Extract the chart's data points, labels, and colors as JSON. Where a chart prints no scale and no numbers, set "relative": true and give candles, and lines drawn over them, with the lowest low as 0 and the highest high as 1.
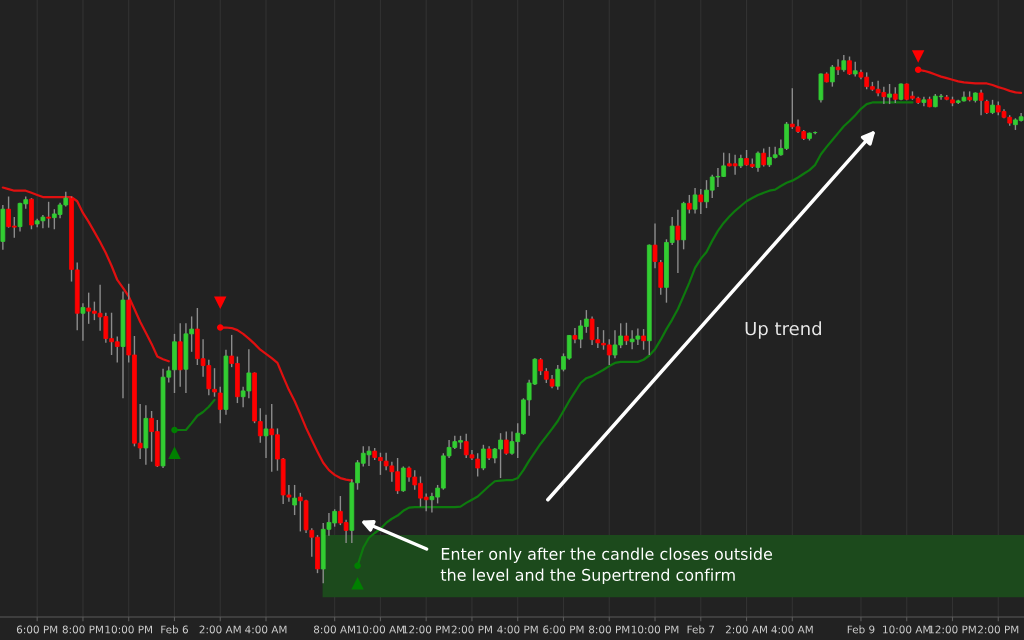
{
  "chart_data": {
    "type": "candlestick",
    "relative": true,
    "grid": "x",
    "categories": [
      null,
      null,
      null,
      null,
      null,
      null,
      "6:00 PM",
      null,
      null,
      null,
      null,
      null,
      null,
      null,
      "8:00 PM",
      null,
      null,
      null,
      null,
      null,
      null,
      null,
      "10:00 PM",
      null,
      null,
      null,
      null,
      null,
      null,
      null,
      "Feb 6",
      null,
      null,
      null,
      null,
      null,
      null,
      null,
      "2:00 AM",
      null,
      null,
      null,
      null,
      null,
      null,
      null,
      "4:00 AM",
      null,
      null,
      null,
      null,
      null,
      null,
      null,
      null,
      null,
      null,
      null,
      "8:00 AM",
      null,
      null,
      null,
      null,
      null,
      null,
      null,
      "10:00 AM",
      null,
      null,
      null,
      null,
      null,
      null,
      null,
      "12:00 PM",
      null,
      null,
      null,
      null,
      null,
      null,
      null,
      "2:00 PM",
      null,
      null,
      null,
      null,
      null,
      null,
      null,
      "4:00 PM",
      null,
      null,
      null,
      null,
      null,
      null,
      null,
      "6:00 PM",
      null,
      null,
      null,
      null,
      null,
      null,
      null,
      "8:00 PM",
      null,
      null,
      null,
      null,
      null,
      null,
      null,
      "10:00 PM",
      null,
      null,
      null,
      null,
      null,
      null,
      null,
      "Feb 7",
      null,
      null,
      null,
      null,
      null,
      null,
      null,
      "2:00 AM",
      null,
      null,
      null,
      null,
      null,
      null,
      null,
      "4:00 AM",
      null,
      null,
      null,
      null,
      null,
      null,
      null,
      null,
      null,
      null,
      null,
      "Feb 9",
      null,
      null,
      null,
      null,
      null,
      null,
      null,
      "10:00 AM",
      null,
      null,
      null,
      null,
      null,
      null,
      null,
      "12:00 PM",
      null,
      null,
      null,
      null,
      null,
      null,
      null,
      "2:00 PM",
      null,
      null,
      null,
      null
    ],
    "ohlc": [
      [
        0.647,
        0.716,
        0.631,
        0.708
      ],
      [
        0.708,
        0.732,
        0.673,
        0.675
      ],
      [
        0.676,
        0.693,
        0.654,
        0.674
      ],
      [
        0.675,
        0.72,
        0.666,
        0.719
      ],
      [
        0.718,
        0.732,
        0.709,
        0.726
      ],
      [
        0.727,
        0.729,
        0.67,
        0.678
      ],
      [
        0.68,
        0.69,
        0.674,
        0.686
      ],
      [
        0.686,
        0.697,
        0.672,
        0.693
      ],
      [
        0.693,
        0.722,
        0.673,
        0.691
      ],
      [
        0.692,
        0.708,
        0.67,
        0.699
      ],
      [
        0.698,
        0.72,
        0.691,
        0.716
      ],
      [
        0.716,
        0.741,
        0.713,
        0.729
      ],
      [
        0.729,
        0.732,
        0.571,
        0.594
      ],
      [
        0.593,
        0.607,
        0.479,
        0.511
      ],
      [
        0.511,
        0.53,
        0.459,
        0.522
      ],
      [
        0.521,
        0.55,
        0.491,
        0.515
      ],
      [
        0.515,
        0.533,
        0.498,
        0.511
      ],
      [
        0.511,
        0.565,
        0.478,
        0.504
      ],
      [
        0.505,
        0.512,
        0.455,
        0.463
      ],
      [
        0.463,
        0.512,
        0.432,
        0.457
      ],
      [
        0.457,
        0.467,
        0.418,
        0.448
      ],
      [
        0.448,
        0.552,
        0.35,
        0.536
      ],
      [
        0.536,
        0.567,
        0.418,
        0.432
      ],
      [
        0.432,
        0.468,
        0.259,
        0.265
      ],
      [
        0.265,
        0.339,
        0.235,
        0.256
      ],
      [
        0.256,
        0.337,
        0.224,
        0.312
      ],
      [
        0.312,
        0.326,
        0.23,
        0.287
      ],
      [
        0.287,
        0.309,
        0.22,
        0.222
      ],
      [
        0.222,
        0.406,
        0.218,
        0.39
      ],
      [
        0.39,
        0.41,
        0.38,
        0.402
      ],
      [
        0.404,
        0.472,
        0.36,
        0.457
      ],
      [
        0.457,
        0.492,
        0.372,
        0.404
      ],
      [
        0.405,
        0.492,
        0.36,
        0.472
      ],
      [
        0.472,
        0.505,
        0.438,
        0.481
      ],
      [
        0.481,
        0.521,
        0.413,
        0.425
      ],
      [
        0.425,
        0.462,
        0.391,
        0.412
      ],
      [
        0.412,
        0.423,
        0.356,
        0.368
      ],
      [
        0.367,
        0.407,
        0.353,
        0.362
      ],
      [
        0.36,
        0.372,
        0.303,
        0.329
      ],
      [
        0.329,
        0.442,
        0.319,
        0.43
      ],
      [
        0.43,
        0.47,
        0.409,
        0.416
      ],
      [
        0.416,
        0.429,
        0.341,
        0.353
      ],
      [
        0.353,
        0.372,
        0.333,
        0.364
      ],
      [
        0.364,
        0.443,
        0.35,
        0.398
      ],
      [
        0.398,
        0.399,
        0.303,
        0.307
      ],
      [
        0.306,
        0.331,
        0.266,
        0.279
      ],
      [
        0.279,
        0.319,
        0.237,
        0.292
      ],
      [
        0.292,
        0.339,
        0.211,
        0.281
      ],
      [
        0.281,
        0.293,
        0.213,
        0.235
      ],
      [
        0.235,
        0.237,
        0.15,
        0.167
      ],
      [
        0.167,
        0.186,
        0.154,
        0.163
      ],
      [
        0.148,
        0.186,
        0.129,
        0.161
      ],
      [
        0.163,
        0.171,
        0.098,
        0.156
      ],
      [
        0.156,
        0.158,
        0.095,
        0.101
      ],
      [
        0.1,
        0.104,
        0.05,
        0.087
      ],
      [
        0.087,
        0.091,
        0.019,
        0.027
      ],
      [
        0.027,
        0.114,
        0,
        0.102
      ],
      [
        0.102,
        0.133,
        0.09,
        0.115
      ],
      [
        0.114,
        0.14,
        0.107,
        0.136
      ],
      [
        0.136,
        0.165,
        0.11,
        0.114
      ],
      [
        0.115,
        0.12,
        0.076,
        0.1
      ],
      [
        0.1,
        0.197,
        0.076,
        0.19
      ],
      [
        0.19,
        0.233,
        0.177,
        0.228
      ],
      [
        0.227,
        0.259,
        0.221,
        0.246
      ],
      [
        0.243,
        0.259,
        0.222,
        0.25
      ],
      [
        0.25,
        0.256,
        0.233,
        0.238
      ],
      [
        0.238,
        0.247,
        0.205,
        0.232
      ],
      [
        0.231,
        0.247,
        0.214,
        0.222
      ],
      [
        0.222,
        0.23,
        0.192,
        0.211
      ],
      [
        0.211,
        0.237,
        0.169,
        0.175
      ],
      [
        0.175,
        0.221,
        0.173,
        0.218
      ],
      [
        0.218,
        0.221,
        0.192,
        0.201
      ],
      [
        0.201,
        0.214,
        0.177,
        0.186
      ],
      [
        0.189,
        0.202,
        0.145,
        0.161
      ],
      [
        0.163,
        0.17,
        0.136,
        0.158
      ],
      [
        0.158,
        0.171,
        0.134,
        0.164
      ],
      [
        0.163,
        0.186,
        0.151,
        0.18
      ],
      [
        0.18,
        0.246,
        0.177,
        0.241
      ],
      [
        0.241,
        0.271,
        0.237,
        0.257
      ],
      [
        0.257,
        0.279,
        0.254,
        0.268
      ],
      [
        0.267,
        0.279,
        0.254,
        0.27
      ],
      [
        0.268,
        0.283,
        0.237,
        0.243
      ],
      [
        0.243,
        0.252,
        0.233,
        0.237
      ],
      [
        0.235,
        0.246,
        0.202,
        0.218
      ],
      [
        0.218,
        0.262,
        0.214,
        0.254
      ],
      [
        0.254,
        0.259,
        0.233,
        0.237
      ],
      [
        0.237,
        0.256,
        0.227,
        0.254
      ],
      [
        0.254,
        0.284,
        0.199,
        0.271
      ],
      [
        0.271,
        0.287,
        0.243,
        0.246
      ],
      [
        0.246,
        0.287,
        0.243,
        0.268
      ],
      [
        0.268,
        0.303,
        0.237,
        0.284
      ],
      [
        0.283,
        0.35,
        0.281,
        0.347
      ],
      [
        0.347,
        0.385,
        0.317,
        0.379
      ],
      [
        0.377,
        0.426,
        0.375,
        0.424
      ],
      [
        0.423,
        0.426,
        0.394,
        0.402
      ],
      [
        0.401,
        0.407,
        0.379,
        0.386
      ],
      [
        0.386,
        0.394,
        0.369,
        0.373
      ],
      [
        0.373,
        0.413,
        0.366,
        0.405
      ],
      [
        0.405,
        0.435,
        0.401,
        0.429
      ],
      [
        0.426,
        0.47,
        0.423,
        0.469
      ],
      [
        0.469,
        0.483,
        0.454,
        0.462
      ],
      [
        0.462,
        0.498,
        0.445,
        0.487
      ],
      [
        0.486,
        0.517,
        0.474,
        0.5
      ],
      [
        0.5,
        0.505,
        0.451,
        0.461
      ],
      [
        0.461,
        0.485,
        0.445,
        0.455
      ],
      [
        0.454,
        0.479,
        0.442,
        0.451
      ],
      [
        0.451,
        0.462,
        0.413,
        0.432
      ],
      [
        0.432,
        0.479,
        0.426,
        0.451
      ],
      [
        0.451,
        0.492,
        0.445,
        0.468
      ],
      [
        0.468,
        0.493,
        0.451,
        0.459
      ],
      [
        0.457,
        0.479,
        0.443,
        0.462
      ],
      [
        0.462,
        0.482,
        0.451,
        0.468
      ],
      [
        0.468,
        0.481,
        0.442,
        0.459
      ],
      [
        0.459,
        0.641,
        0.432,
        0.64
      ],
      [
        0.64,
        0.681,
        0.596,
        0.609
      ],
      [
        0.607,
        0.612,
        0.546,
        0.56
      ],
      [
        0.56,
        0.651,
        0.531,
        0.645
      ],
      [
        0.645,
        0.693,
        0.64,
        0.676
      ],
      [
        0.676,
        0.707,
        0.587,
        0.65
      ],
      [
        0.65,
        0.722,
        0.632,
        0.719
      ],
      [
        0.719,
        0.735,
        0.7,
        0.708
      ],
      [
        0.708,
        0.748,
        0.7,
        0.735
      ],
      [
        0.735,
        0.746,
        0.699,
        0.722
      ],
      [
        0.722,
        0.763,
        0.71,
        0.744
      ],
      [
        0.744,
        0.773,
        0.729,
        0.769
      ],
      [
        0.769,
        0.786,
        0.75,
        0.77
      ],
      [
        0.77,
        0.815,
        0.769,
        0.79
      ],
      [
        0.794,
        0.814,
        0.789,
        0.79
      ],
      [
        0.794,
        0.811,
        0.773,
        0.79
      ],
      [
        0.79,
        0.811,
        0.786,
        0.804
      ],
      [
        0.804,
        0.82,
        0.79,
        0.792
      ],
      [
        0.793,
        0.804,
        0.786,
        0.789
      ],
      [
        0.787,
        0.817,
        0.779,
        0.814
      ],
      [
        0.814,
        0.823,
        0.789,
        0.792
      ],
      [
        0.792,
        0.826,
        0.788,
        0.806
      ],
      [
        0.806,
        0.826,
        0.804,
        0.811
      ],
      [
        0.811,
        0.84,
        0.809,
        0.823
      ],
      [
        0.823,
        0.873,
        0.82,
        0.869
      ],
      [
        0.869,
        0.937,
        0.86,
        0.864
      ],
      [
        0.864,
        0.878,
        0.852,
        0.855
      ],
      [
        0.855,
        0.858,
        0.839,
        0.842
      ],
      [
        0.842,
        0.853,
        0.838,
        0.852
      ],
      [
        0.853,
        0.855,
        0.85,
        0.853
      ],
      [
        0.915,
        0.965,
        0.91,
        0.964
      ],
      [
        0.964,
        0.967,
        0.948,
        0.949
      ],
      [
        0.949,
        0.981,
        0.94,
        0.977
      ],
      [
        0.977,
        0.992,
        0.962,
        0.972
      ],
      [
        0.972,
        1,
        0.968,
        0.989
      ],
      [
        0.989,
        0.997,
        0.962,
        0.964
      ],
      [
        0.964,
        0.987,
        0.959,
        0.97
      ],
      [
        0.967,
        0.972,
        0.954,
        0.958
      ],
      [
        0.958,
        0.967,
        0.935,
        0.94
      ],
      [
        0.94,
        0.949,
        0.932,
        0.935
      ],
      [
        0.935,
        0.951,
        0.922,
        0.928
      ],
      [
        0.929,
        0.94,
        0.907,
        0.921
      ],
      [
        0.92,
        0.945,
        0.907,
        0.926
      ],
      [
        0.926,
        0.939,
        0.909,
        0.916
      ],
      [
        0.916,
        0.946,
        0.914,
        0.945
      ],
      [
        0.945,
        0.946,
        0.914,
        0.916
      ],
      [
        0.922,
        0.931,
        0.915,
        0.918
      ],
      [
        0.918,
        0.921,
        0.907,
        0.91
      ],
      [
        0.91,
        0.921,
        0.903,
        0.915
      ],
      [
        0.916,
        0.921,
        0.901,
        0.902
      ],
      [
        0.902,
        0.926,
        0.901,
        0.922
      ],
      [
        0.921,
        0.926,
        0.915,
        0.922
      ],
      [
        0.92,
        0.924,
        0.914,
        0.916
      ],
      [
        0.915,
        0.921,
        0.903,
        0.909
      ],
      [
        0.91,
        0.915,
        0.907,
        0.913
      ],
      [
        0.913,
        0.931,
        0.912,
        0.92
      ],
      [
        0.92,
        0.931,
        0.912,
        0.915
      ],
      [
        0.914,
        0.929,
        0.91,
        0.928
      ],
      [
        0.928,
        0.934,
        0.886,
        0.914
      ],
      [
        0.912,
        0.915,
        0.888,
        0.891
      ],
      [
        0.891,
        0.915,
        0.888,
        0.905
      ],
      [
        0.904,
        0.912,
        0.886,
        0.892
      ],
      [
        0.893,
        0.897,
        0.88,
        0.882
      ],
      [
        0.882,
        0.886,
        0.866,
        0.871
      ],
      [
        0.868,
        0.88,
        0.858,
        0.877
      ],
      [
        0.876,
        0.89,
        0.874,
        0.883
      ]
    ],
    "colors": [
      "#32cd32",
      "#ff0000",
      "#ff0000",
      "#32cd32",
      "#32cd32",
      "#ff0000",
      "#32cd32",
      "#32cd32",
      "#ff0000",
      "#32cd32",
      "#32cd32",
      "#32cd32",
      "#ff0000",
      "#ff0000",
      "#32cd32",
      "#ff0000",
      "#ff0000",
      "#ff0000",
      "#ff0000",
      "#ff0000",
      "#ff0000",
      "#32cd32",
      "#ff0000",
      "#ff0000",
      "#ff0000",
      "#32cd32",
      "#ff0000",
      "#ff0000",
      "#32cd32",
      "#32cd32",
      "#32cd32",
      "#ff0000",
      "#32cd32",
      "#32cd32",
      "#ff0000",
      "#ff0000",
      "#ff0000",
      "#ff0000",
      "#ff0000",
      "#32cd32",
      "#ff0000",
      "#ff0000",
      "#32cd32",
      "#32cd32",
      "#ff0000",
      "#ff0000",
      "#32cd32",
      "#ff0000",
      "#ff0000",
      "#ff0000",
      "#ff0000",
      "#32cd32",
      "#ff0000",
      "#ff0000",
      "#ff0000",
      "#ff0000",
      "#32cd32",
      "#32cd32",
      "#32cd32",
      "#ff0000",
      "#ff0000",
      "#32cd32",
      "#32cd32",
      "#32cd32",
      "#32cd32",
      "#ff0000",
      "#ff0000",
      "#ff0000",
      "#ff0000",
      "#ff0000",
      "#32cd32",
      "#ff0000",
      "#ff0000",
      "#ff0000",
      "#ff0000",
      "#32cd32",
      "#32cd32",
      "#32cd32",
      "#32cd32",
      "#32cd32",
      "#32cd32",
      "#ff0000",
      "#ff0000",
      "#ff0000",
      "#32cd32",
      "#ff0000",
      "#32cd32",
      "#32cd32",
      "#ff0000",
      "#32cd32",
      "#32cd32",
      "#32cd32",
      "#32cd32",
      "#32cd32",
      "#ff0000",
      "#ff0000",
      "#ff0000",
      "#32cd32",
      "#32cd32",
      "#32cd32",
      "#ff0000",
      "#32cd32",
      "#32cd32",
      "#ff0000",
      "#ff0000",
      "#ff0000",
      "#ff0000",
      "#32cd32",
      "#32cd32",
      "#ff0000",
      "#32cd32",
      "#32cd32",
      "#ff0000",
      "#32cd32",
      "#ff0000",
      "#ff0000",
      "#32cd32",
      "#32cd32",
      "#ff0000",
      "#32cd32",
      "#ff0000",
      "#32cd32",
      "#ff0000",
      "#32cd32",
      "#32cd32",
      "#32cd32",
      "#32cd32",
      "#ff0000",
      "#ff0000",
      "#32cd32",
      "#ff0000",
      "#ff0000",
      "#32cd32",
      "#ff0000",
      "#32cd32",
      "#32cd32",
      "#32cd32",
      "#32cd32",
      "#ff0000",
      "#ff0000",
      "#ff0000",
      "#32cd32",
      "#32cd32",
      "#32cd32",
      "#ff0000",
      "#32cd32",
      "#ff0000",
      "#32cd32",
      "#ff0000",
      "#32cd32",
      "#ff0000",
      "#ff0000",
      "#ff0000",
      "#ff0000",
      "#ff0000",
      "#32cd32",
      "#ff0000",
      "#32cd32",
      "#ff0000",
      "#ff0000",
      "#ff0000",
      "#32cd32",
      "#ff0000",
      "#32cd32",
      "#32cd32",
      "#ff0000",
      "#ff0000",
      "#32cd32",
      "#32cd32",
      "#ff0000",
      "#32cd32",
      "#ff0000",
      "#ff0000",
      "#32cd32",
      "#ff0000",
      "#ff0000",
      "#ff0000",
      "#32cd32",
      "#32cd32"
    ],
    "series": [
      {
        "type": "line",
        "color": "#e01010",
        "values": [
          0.749,
          0.746,
          0.743,
          0.743,
          0.743,
          0.739,
          0.735,
          0.731,
          0.731,
          0.731,
          0.731,
          0.731,
          0.731,
          0.723,
          0.701,
          0.684,
          0.665,
          0.646,
          0.625,
          0.601,
          0.574,
          0.559,
          0.543,
          0.519,
          0.495,
          0.474,
          0.453,
          0.429,
          0.424,
          0.42,
          null,
          null,
          null,
          null,
          null,
          null,
          null,
          null,
          0.484,
          0.484,
          0.483,
          0.479,
          0.472,
          0.463,
          0.453,
          0.442,
          0.434,
          0.426,
          0.417,
          0.391,
          0.366,
          0.345,
          0.32,
          0.294,
          0.271,
          0.249,
          0.228,
          0.214,
          0.205,
          0.199,
          0.196,
          0.194,
          null,
          null,
          null,
          null,
          null,
          null,
          null,
          null,
          null,
          null,
          null,
          null,
          null,
          null,
          null,
          null,
          null,
          null,
          null,
          null,
          null,
          null,
          null,
          null,
          null,
          null,
          null,
          null,
          null,
          null,
          null,
          null,
          null,
          null,
          null,
          null,
          null,
          null,
          null,
          null,
          null,
          null,
          null,
          null,
          null,
          null,
          null,
          null,
          null,
          null,
          null,
          null,
          null,
          null,
          null,
          null,
          null,
          null,
          null,
          null,
          null,
          null,
          null,
          null,
          null,
          null,
          null,
          null,
          null,
          null,
          null,
          null,
          null,
          null,
          null,
          null,
          null,
          null,
          null,
          null,
          null,
          null,
          null,
          null,
          null,
          null,
          null,
          null,
          null,
          null,
          null,
          null,
          null,
          null,
          null,
          null,
          null,
          null,
          0.972,
          0.97,
          0.967,
          0.963,
          0.959,
          0.956,
          0.953,
          0.95,
          0.948,
          0.947,
          0.946,
          0.946,
          0.946,
          0.943,
          0.939,
          0.936,
          0.932,
          0.929,
          0.928
        ]
      },
      {
        "type": "line",
        "color": "#0e7a0e",
        "values": [
          null,
          null,
          null,
          null,
          null,
          null,
          null,
          null,
          null,
          null,
          null,
          null,
          null,
          null,
          null,
          null,
          null,
          null,
          null,
          null,
          null,
          null,
          null,
          null,
          null,
          null,
          null,
          null,
          null,
          null,
          0.29,
          0.29,
          0.29,
          0.303,
          0.317,
          0.324,
          0.334,
          0.347,
          null,
          null,
          null,
          null,
          null,
          null,
          null,
          null,
          null,
          null,
          null,
          null,
          null,
          null,
          null,
          null,
          null,
          null,
          null,
          null,
          null,
          null,
          null,
          null,
          0.033,
          0.067,
          0.086,
          0.095,
          0.103,
          0.114,
          0.122,
          0.128,
          0.137,
          0.143,
          0.144,
          0.144,
          0.144,
          0.144,
          0.144,
          0.144,
          0.144,
          0.144,
          0.145,
          0.152,
          0.158,
          0.164,
          0.174,
          0.184,
          0.193,
          0.194,
          0.195,
          0.195,
          0.199,
          0.214,
          0.232,
          0.248,
          0.264,
          0.278,
          0.292,
          0.307,
          0.326,
          0.345,
          0.362,
          0.379,
          0.388,
          0.392,
          0.398,
          0.404,
          0.411,
          0.417,
          0.419,
          0.419,
          0.419,
          0.419,
          0.423,
          0.431,
          0.443,
          0.461,
          0.481,
          0.499,
          0.519,
          0.544,
          0.569,
          0.597,
          0.614,
          0.627,
          0.648,
          0.667,
          0.682,
          0.694,
          0.705,
          0.714,
          0.723,
          0.729,
          0.735,
          0.739,
          0.743,
          0.745,
          0.752,
          0.758,
          0.762,
          0.768,
          0.775,
          0.782,
          0.792,
          0.812,
          0.826,
          0.839,
          0.852,
          0.865,
          0.875,
          0.886,
          0.898,
          0.907,
          0.91,
          0.91,
          0.91,
          0.91,
          0.91,
          0.91,
          0.91,
          0.91,
          null,
          null,
          null,
          null,
          null,
          null,
          null,
          null,
          null,
          null,
          null,
          null,
          null,
          null,
          null,
          null,
          null,
          null,
          null
        ]
      },
      {
        "type": "scatter",
        "marker": "circle",
        "color": "#ff0000",
        "values": [
          null,
          null,
          null,
          null,
          null,
          null,
          null,
          null,
          null,
          null,
          null,
          null,
          null,
          null,
          null,
          null,
          null,
          null,
          null,
          null,
          null,
          null,
          null,
          null,
          null,
          null,
          null,
          null,
          null,
          null,
          null,
          null,
          null,
          null,
          null,
          null,
          null,
          null,
          0.484,
          null,
          null,
          null,
          null,
          null,
          null,
          null,
          null,
          null,
          null,
          null,
          null,
          null,
          null,
          null,
          null,
          null,
          null,
          null,
          null,
          null,
          null,
          null,
          null,
          null,
          null,
          null,
          null,
          null,
          null,
          null,
          null,
          null,
          null,
          null,
          null,
          null,
          null,
          null,
          null,
          null,
          null,
          null,
          null,
          null,
          null,
          null,
          null,
          null,
          null,
          null,
          null,
          null,
          null,
          null,
          null,
          null,
          null,
          null,
          null,
          null,
          null,
          null,
          null,
          null,
          null,
          null,
          null,
          null,
          null,
          null,
          null,
          null,
          null,
          null,
          null,
          null,
          null,
          null,
          null,
          null,
          null,
          null,
          null,
          null,
          null,
          null,
          null,
          null,
          null,
          null,
          null,
          null,
          null,
          null,
          null,
          null,
          null,
          null,
          null,
          null,
          null,
          null,
          null,
          null,
          null,
          null,
          null,
          null,
          null,
          null,
          null,
          null,
          null,
          null,
          null,
          null,
          null,
          null,
          null,
          null,
          0.972,
          null,
          null,
          null,
          null,
          null,
          null,
          null,
          null,
          null,
          null,
          null,
          null,
          null,
          null,
          null,
          null,
          null,
          null
        ]
      },
      {
        "type": "scatter",
        "marker": "circle",
        "color": "#008000",
        "values": [
          null,
          null,
          null,
          null,
          null,
          null,
          null,
          null,
          null,
          null,
          null,
          null,
          null,
          null,
          null,
          null,
          null,
          null,
          null,
          null,
          null,
          null,
          null,
          null,
          null,
          null,
          null,
          null,
          null,
          null,
          0.29,
          null,
          null,
          null,
          null,
          null,
          null,
          null,
          null,
          null,
          null,
          null,
          null,
          null,
          null,
          null,
          null,
          null,
          null,
          null,
          null,
          null,
          null,
          null,
          null,
          null,
          null,
          null,
          null,
          null,
          null,
          null,
          0.033,
          null,
          null,
          null,
          null,
          null,
          null,
          null,
          null,
          null,
          null,
          null,
          null,
          null,
          null,
          null,
          null,
          null,
          null,
          null,
          null,
          null,
          null,
          null,
          null,
          null,
          null,
          null,
          null,
          null,
          null,
          null,
          null,
          null,
          null,
          null,
          null,
          null,
          null,
          null,
          null,
          null,
          null,
          null,
          null,
          null,
          null,
          null,
          null,
          null,
          null,
          null,
          null,
          null,
          null,
          null,
          null,
          null,
          null,
          null,
          null,
          null,
          null,
          null,
          null,
          null,
          null,
          null,
          null,
          null,
          null,
          null,
          null,
          null,
          null,
          null,
          null,
          null,
          null,
          null,
          null,
          null,
          null,
          null,
          null,
          null,
          null,
          null,
          null,
          null,
          null,
          null,
          null,
          null,
          null,
          null,
          null,
          null,
          null,
          null,
          null,
          null,
          null,
          null,
          null,
          null,
          null,
          null,
          null,
          null,
          null,
          null,
          null,
          null,
          null,
          null,
          null
        ]
      },
      {
        "type": "scatter",
        "marker": "triangle",
        "color": "#ff0000",
        "values": [
          null,
          null,
          null,
          null,
          null,
          null,
          null,
          null,
          null,
          null,
          null,
          null,
          null,
          null,
          null,
          null,
          null,
          null,
          null,
          null,
          null,
          null,
          null,
          null,
          null,
          null,
          null,
          null,
          null,
          null,
          null,
          null,
          null,
          null,
          null,
          null,
          null,
          null,
          0.531,
          null,
          null,
          null,
          null,
          null,
          null,
          null,
          null,
          null,
          null,
          null,
          null,
          null,
          null,
          null,
          null,
          null,
          null,
          null,
          null,
          null,
          null,
          null,
          null,
          null,
          null,
          null,
          null,
          null,
          null,
          null,
          null,
          null,
          null,
          null,
          null,
          null,
          null,
          null,
          null,
          null,
          null,
          null,
          null,
          null,
          null,
          null,
          null,
          null,
          null,
          null,
          null,
          null,
          null,
          null,
          null,
          null,
          null,
          null,
          null,
          null,
          null,
          null,
          null,
          null,
          null,
          null,
          null,
          null,
          null,
          null,
          null,
          null,
          null,
          null,
          null,
          null,
          null,
          null,
          null,
          null,
          null,
          null,
          null,
          null,
          null,
          null,
          null,
          null,
          null,
          null,
          null,
          null,
          null,
          null,
          null,
          null,
          null,
          null,
          null,
          null,
          null,
          null,
          null,
          null,
          null,
          null,
          null,
          null,
          null,
          null,
          null,
          null,
          null,
          null,
          null,
          null,
          null,
          null,
          null,
          null,
          0.997,
          null,
          null,
          null,
          null,
          null,
          null,
          null,
          null,
          null,
          null,
          null,
          null,
          null,
          null,
          null,
          null,
          null,
          null
        ]
      },
      {
        "type": "scatter",
        "marker": "triangle",
        "color": "#008000",
        "values": [
          null,
          null,
          null,
          null,
          null,
          null,
          null,
          null,
          null,
          null,
          null,
          null,
          null,
          null,
          null,
          null,
          null,
          null,
          null,
          null,
          null,
          null,
          null,
          null,
          null,
          null,
          null,
          null,
          null,
          null,
          0.247,
          null,
          null,
          null,
          null,
          null,
          null,
          null,
          null,
          null,
          null,
          null,
          null,
          null,
          null,
          null,
          null,
          null,
          null,
          null,
          null,
          null,
          null,
          null,
          null,
          null,
          null,
          null,
          null,
          null,
          null,
          null,
          0.0,
          null,
          null,
          null,
          null,
          null,
          null,
          null,
          null,
          null,
          null,
          null,
          null,
          null,
          null,
          null,
          null,
          null,
          null,
          null,
          null,
          null,
          null,
          null,
          null,
          null,
          null,
          null,
          null,
          null,
          null,
          null,
          null,
          null,
          null,
          null,
          null,
          null,
          null,
          null,
          null,
          null,
          null,
          null,
          null,
          null,
          null,
          null,
          null,
          null,
          null,
          null,
          null,
          null,
          null,
          null,
          null,
          null,
          null,
          null,
          null,
          null,
          null,
          null,
          null,
          null,
          null,
          null,
          null,
          null,
          null,
          null,
          null,
          null,
          null,
          null,
          null,
          null,
          null,
          null,
          null,
          null,
          null,
          null,
          null,
          null,
          null,
          null,
          null,
          null,
          null,
          null,
          null,
          null,
          null,
          null,
          null,
          null,
          null,
          null,
          null,
          null,
          null,
          null,
          null,
          null,
          null,
          null,
          null,
          null,
          null,
          null,
          null,
          null,
          null,
          null,
          null
        ]
      }
    ],
    "annotations": [
      "Up trend",
      "Enter only after the candle closes outside\nthe level and the Supertrend confirm"
    ]
  }
}
